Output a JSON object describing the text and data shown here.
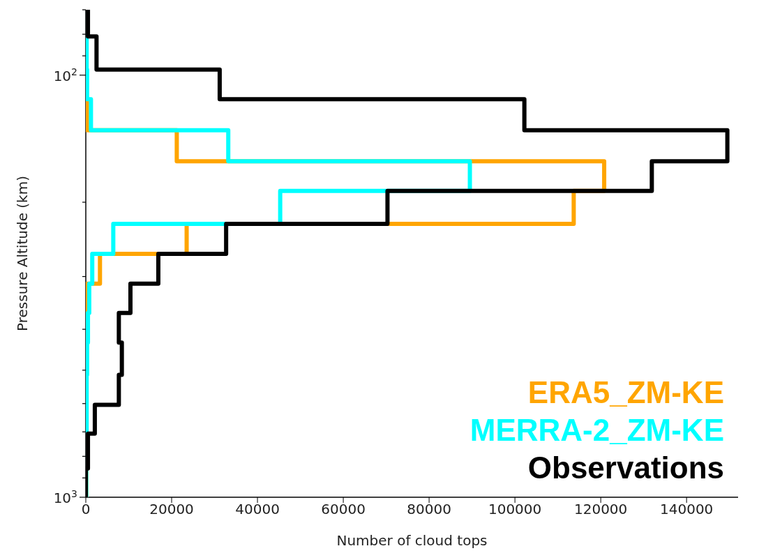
{
  "chart_data": {
    "type": "histogram",
    "orientation": "horizontal",
    "xlabel": "Number of cloud tops",
    "ylabel": "Pressure Altitude (km)",
    "bins": [
      70,
      81,
      97,
      114,
      135,
      160,
      188,
      225,
      265,
      312,
      366,
      430,
      513,
      604,
      707,
      855,
      1000
    ],
    "series": [
      {
        "name": "ERA5_ZM-KE",
        "color": "#ffa500",
        "values": [
          0,
          0,
          0,
          300,
          21200,
          120800,
          113700,
          23500,
          3300,
          300,
          200,
          200,
          100,
          100,
          100,
          100
        ]
      },
      {
        "name": "MERRA-2_ZM-KE",
        "color": "#00ffff",
        "values": [
          200,
          200,
          300,
          1200,
          33200,
          89500,
          45300,
          6400,
          1500,
          800,
          500,
          300,
          200,
          200,
          100,
          100
        ]
      },
      {
        "name": "Observations",
        "color": "#000000",
        "values": [
          500,
          2500,
          31200,
          102200,
          149500,
          131900,
          70300,
          32700,
          16900,
          10400,
          7700,
          8400,
          7700,
          2100,
          500,
          0
        ]
      }
    ],
    "xlim": [
      0,
      152000
    ],
    "xticks": [
      0,
      20000,
      40000,
      60000,
      80000,
      100000,
      120000,
      140000
    ],
    "ylim": [
      1000,
      70
    ],
    "log": "y",
    "yticks": [
      {
        "value": 100,
        "label": "10$^{2}$"
      },
      {
        "value": 1000,
        "label": "10$^{3}$"
      },
      {
        "value": 70,
        "label": null
      },
      {
        "value": 80,
        "label": null
      },
      {
        "value": 90,
        "label": null
      },
      {
        "value": 200,
        "label": null
      },
      {
        "value": 300,
        "label": null
      },
      {
        "value": 400,
        "label": null
      },
      {
        "value": 500,
        "label": null
      },
      {
        "value": 600,
        "label": null
      },
      {
        "value": 700,
        "label": null
      },
      {
        "value": 800,
        "label": null
      },
      {
        "value": 900,
        "label": null
      }
    ],
    "grid": false,
    "legend": "bottom right",
    "line_style": "solid"
  }
}
